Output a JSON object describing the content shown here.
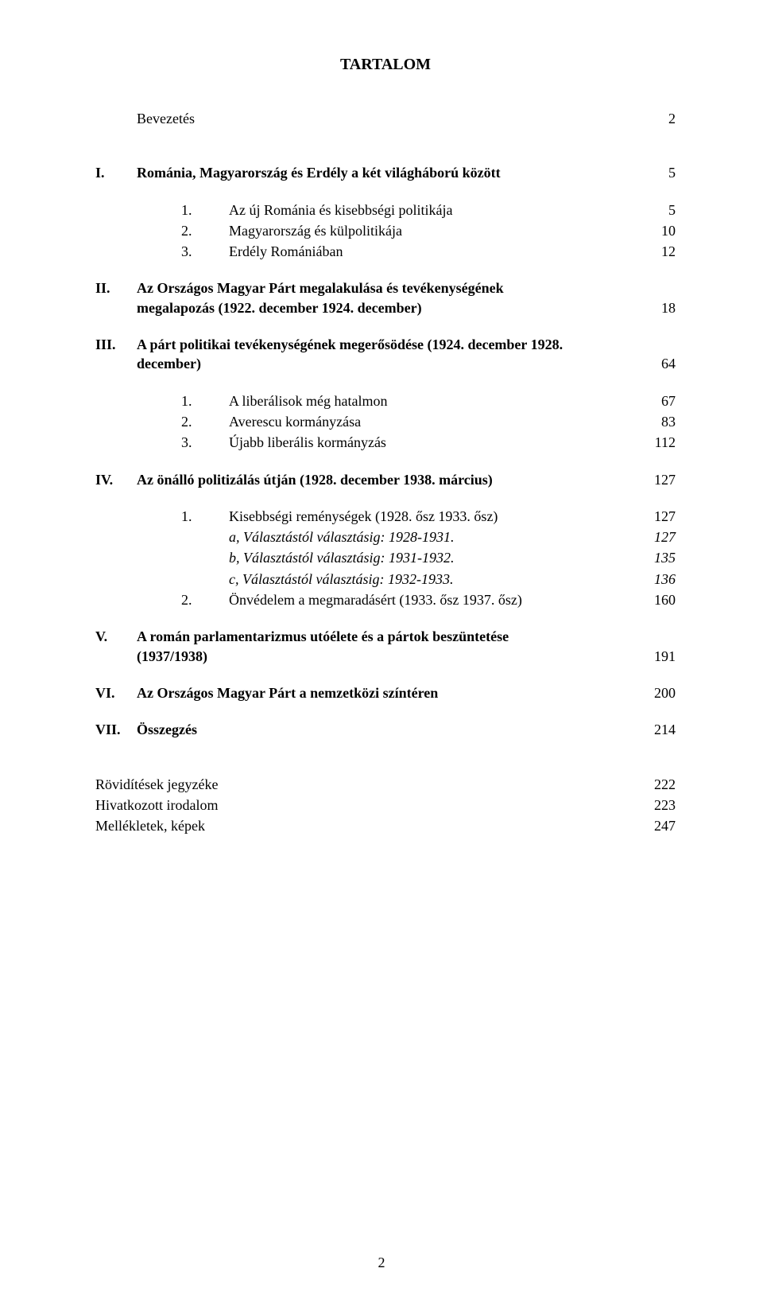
{
  "title": "TARTALOM",
  "rows": [
    {
      "roman": "",
      "text": "Bevezetés",
      "page": "2",
      "cls": "row lvl0 gap-lg",
      "labelCls": ""
    },
    {
      "roman": "I.",
      "text": "Románia, Magyarország és Erdély a két világháború között",
      "page": "5",
      "cls": "row lvl0 gap-md",
      "labelCls": "bold"
    },
    {
      "num": "1.",
      "text": "Az új Románia és kisebbségi politikája",
      "page": "5",
      "cls": "row indent-1 gap-sm"
    },
    {
      "num": "2.",
      "text": "Magyarország és külpolitikája",
      "page": "10",
      "cls": "row indent-1 gap-sm"
    },
    {
      "num": "3.",
      "text": "Erdély Romániában",
      "page": "12",
      "cls": "row indent-1 gap-md"
    },
    {
      "roman": "II.",
      "text": "Az Országos Magyar Párt megalakulása és tevékenységének megalapozás (1922. december 1924. december)",
      "page": "18",
      "cls": "row lvl0 gap-md",
      "labelCls": "bold",
      "multi": true
    },
    {
      "roman": "III.",
      "text": "A párt politikai tevékenységének megerősödése (1924. december 1928. december)",
      "page": "64",
      "cls": "row lvl0 gap-md",
      "labelCls": "bold",
      "multi": true
    },
    {
      "num": "1.",
      "text": "A liberálisok még hatalmon",
      "page": "67",
      "cls": "row indent-1 gap-sm"
    },
    {
      "num": "2.",
      "text": "Averescu kormányzása",
      "page": "83",
      "cls": "row indent-1 gap-sm"
    },
    {
      "num": "3.",
      "text": "Újabb liberális kormányzás",
      "page": "112",
      "cls": "row indent-1 gap-md"
    },
    {
      "roman": "IV.",
      "text": "Az önálló politizálás útján (1928. december 1938. március)",
      "page": "127",
      "cls": "row lvl0 gap-md",
      "labelCls": "bold"
    },
    {
      "num": "1.",
      "text": "Kisebbségi reménységek (1928. ősz 1933. ősz)",
      "page": "127",
      "cls": "row indent-1 gap-sm"
    },
    {
      "text": "a, Választástól választásig: 1928-1931.",
      "page": "127",
      "cls": "row indent-2 gap-sm italic"
    },
    {
      "text": "b, Választástól választásig: 1931-1932.",
      "page": "135",
      "cls": "row indent-2 gap-sm italic"
    },
    {
      "text": "c, Választástól választásig: 1932-1933.",
      "page": "136",
      "cls": "row indent-2 gap-sm italic"
    },
    {
      "num": "2.",
      "text": "Önvédelem a megmaradásért (1933. ősz 1937. ősz)",
      "page": "160",
      "cls": "row indent-1 gap-md"
    },
    {
      "roman": "V.",
      "text": "A román parlamentarizmus utóélete és a pártok beszüntetése (1937/1938)",
      "page": "191",
      "cls": "row lvl0 gap-md",
      "labelCls": "bold",
      "multi": true
    },
    {
      "roman": "VI.",
      "text": "Az Országos Magyar Párt a nemzetközi színtéren",
      "page": "200",
      "cls": "row lvl0 gap-md",
      "labelCls": "bold"
    },
    {
      "roman": "VII.",
      "text": "Összegzés",
      "page": "214",
      "cls": "row lvl0 gap-lg",
      "labelCls": "bold"
    }
  ],
  "appendix": [
    {
      "text": "Rövidítések jegyzéke",
      "page": "222"
    },
    {
      "text": "Hivatkozott irodalom",
      "page": "223"
    },
    {
      "text": "Mellékletek, képek",
      "page": "247"
    }
  ],
  "pageNumber": "2"
}
